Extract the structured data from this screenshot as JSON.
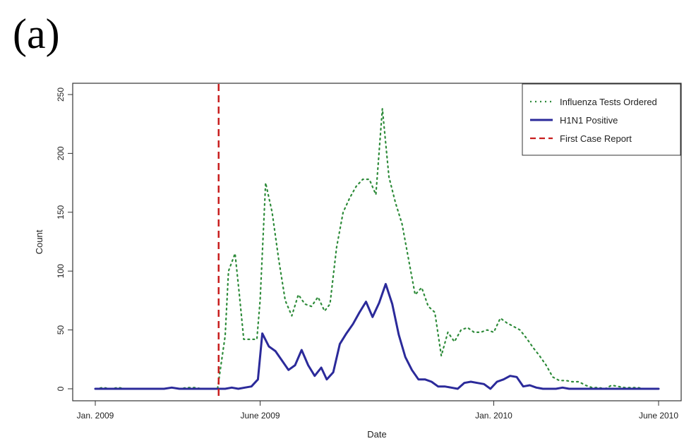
{
  "panel_label": "(a)",
  "chart_data": {
    "type": "line",
    "xlabel": "Date",
    "ylabel": "Count",
    "ylim": [
      0,
      250
    ],
    "xlim": [
      "2009-01-01",
      "2010-06-01"
    ],
    "y_ticks": [
      0,
      50,
      100,
      150,
      200,
      250
    ],
    "x_ticks": [
      {
        "date": "2009-01-01",
        "label": "Jan. 2009"
      },
      {
        "date": "2009-06-01",
        "label": "June 2009"
      },
      {
        "date": "2010-01-01",
        "label": "Jan. 2010"
      },
      {
        "date": "2010-06-01",
        "label": "June 2010"
      }
    ],
    "grid": false,
    "legend_position": "top-right",
    "series": [
      {
        "name": "Influenza Tests Ordered",
        "style": "dotted",
        "color": "#2e8b3a",
        "points": [
          [
            "2009-01-01",
            0
          ],
          [
            "2009-01-08",
            1
          ],
          [
            "2009-01-15",
            0
          ],
          [
            "2009-01-22",
            1
          ],
          [
            "2009-01-29",
            0
          ],
          [
            "2009-02-05",
            0
          ],
          [
            "2009-02-12",
            0
          ],
          [
            "2009-02-19",
            0
          ],
          [
            "2009-02-26",
            0
          ],
          [
            "2009-03-05",
            0
          ],
          [
            "2009-03-12",
            1
          ],
          [
            "2009-03-19",
            0
          ],
          [
            "2009-03-26",
            1
          ],
          [
            "2009-04-02",
            1
          ],
          [
            "2009-04-09",
            0
          ],
          [
            "2009-04-16",
            0
          ],
          [
            "2009-04-23",
            0
          ],
          [
            "2009-04-30",
            45
          ],
          [
            "2009-05-03",
            100
          ],
          [
            "2009-05-09",
            115
          ],
          [
            "2009-05-13",
            80
          ],
          [
            "2009-05-17",
            42
          ],
          [
            "2009-05-23",
            42
          ],
          [
            "2009-05-29",
            42
          ],
          [
            "2009-06-01",
            75
          ],
          [
            "2009-06-06",
            175
          ],
          [
            "2009-06-12",
            150
          ],
          [
            "2009-06-18",
            110
          ],
          [
            "2009-06-24",
            75
          ],
          [
            "2009-06-30",
            62
          ],
          [
            "2009-07-06",
            80
          ],
          [
            "2009-07-12",
            72
          ],
          [
            "2009-07-18",
            70
          ],
          [
            "2009-07-24",
            78
          ],
          [
            "2009-07-30",
            66
          ],
          [
            "2009-08-04",
            72
          ],
          [
            "2009-08-10",
            120
          ],
          [
            "2009-08-16",
            150
          ],
          [
            "2009-08-22",
            162
          ],
          [
            "2009-08-28",
            172
          ],
          [
            "2009-09-03",
            178
          ],
          [
            "2009-09-09",
            178
          ],
          [
            "2009-09-15",
            165
          ],
          [
            "2009-09-21",
            238
          ],
          [
            "2009-09-27",
            180
          ],
          [
            "2009-10-03",
            158
          ],
          [
            "2009-10-09",
            140
          ],
          [
            "2009-10-15",
            110
          ],
          [
            "2009-10-21",
            80
          ],
          [
            "2009-10-27",
            86
          ],
          [
            "2009-11-02",
            70
          ],
          [
            "2009-11-08",
            65
          ],
          [
            "2009-11-14",
            28
          ],
          [
            "2009-11-20",
            48
          ],
          [
            "2009-11-26",
            40
          ],
          [
            "2009-12-02",
            50
          ],
          [
            "2009-12-08",
            52
          ],
          [
            "2009-12-14",
            48
          ],
          [
            "2009-12-20",
            48
          ],
          [
            "2009-12-26",
            50
          ],
          [
            "2010-01-01",
            48
          ],
          [
            "2010-01-07",
            60
          ],
          [
            "2010-01-13",
            56
          ],
          [
            "2010-01-19",
            53
          ],
          [
            "2010-01-25",
            50
          ],
          [
            "2010-01-31",
            43
          ],
          [
            "2010-02-06",
            35
          ],
          [
            "2010-02-12",
            28
          ],
          [
            "2010-02-18",
            20
          ],
          [
            "2010-02-24",
            10
          ],
          [
            "2010-03-02",
            7
          ],
          [
            "2010-03-08",
            7
          ],
          [
            "2010-03-14",
            6
          ],
          [
            "2010-03-20",
            6
          ],
          [
            "2010-03-26",
            3
          ],
          [
            "2010-04-01",
            1
          ],
          [
            "2010-04-07",
            1
          ],
          [
            "2010-04-13",
            0
          ],
          [
            "2010-04-19",
            3
          ],
          [
            "2010-04-25",
            2
          ],
          [
            "2010-05-01",
            1
          ],
          [
            "2010-05-07",
            1
          ],
          [
            "2010-05-13",
            1
          ],
          [
            "2010-05-19",
            0
          ],
          [
            "2010-06-01",
            0
          ]
        ]
      },
      {
        "name": "H1N1 Positive",
        "style": "solid",
        "color": "#2b2a9a",
        "points": [
          [
            "2009-01-01",
            0
          ],
          [
            "2009-01-08",
            0
          ],
          [
            "2009-01-15",
            0
          ],
          [
            "2009-01-22",
            0
          ],
          [
            "2009-01-29",
            0
          ],
          [
            "2009-02-05",
            0
          ],
          [
            "2009-02-12",
            0
          ],
          [
            "2009-02-19",
            0
          ],
          [
            "2009-02-26",
            0
          ],
          [
            "2009-03-05",
            0
          ],
          [
            "2009-03-12",
            1
          ],
          [
            "2009-03-19",
            0
          ],
          [
            "2009-03-26",
            0
          ],
          [
            "2009-04-02",
            0
          ],
          [
            "2009-04-09",
            0
          ],
          [
            "2009-04-16",
            0
          ],
          [
            "2009-04-23",
            0
          ],
          [
            "2009-04-30",
            0
          ],
          [
            "2009-05-06",
            1
          ],
          [
            "2009-05-12",
            0
          ],
          [
            "2009-05-18",
            1
          ],
          [
            "2009-05-24",
            2
          ],
          [
            "2009-05-30",
            8
          ],
          [
            "2009-06-03",
            47
          ],
          [
            "2009-06-09",
            36
          ],
          [
            "2009-06-15",
            32
          ],
          [
            "2009-06-21",
            24
          ],
          [
            "2009-06-27",
            16
          ],
          [
            "2009-07-03",
            20
          ],
          [
            "2009-07-09",
            33
          ],
          [
            "2009-07-15",
            20
          ],
          [
            "2009-07-21",
            11
          ],
          [
            "2009-07-27",
            18
          ],
          [
            "2009-08-01",
            8
          ],
          [
            "2009-08-07",
            14
          ],
          [
            "2009-08-13",
            38
          ],
          [
            "2009-08-19",
            47
          ],
          [
            "2009-08-25",
            55
          ],
          [
            "2009-08-31",
            65
          ],
          [
            "2009-09-06",
            74
          ],
          [
            "2009-09-12",
            61
          ],
          [
            "2009-09-18",
            73
          ],
          [
            "2009-09-24",
            89
          ],
          [
            "2009-09-30",
            72
          ],
          [
            "2009-10-06",
            46
          ],
          [
            "2009-10-12",
            27
          ],
          [
            "2009-10-18",
            16
          ],
          [
            "2009-10-24",
            8
          ],
          [
            "2009-10-30",
            8
          ],
          [
            "2009-11-05",
            6
          ],
          [
            "2009-11-11",
            2
          ],
          [
            "2009-11-17",
            2
          ],
          [
            "2009-11-23",
            1
          ],
          [
            "2009-11-29",
            0
          ],
          [
            "2009-12-05",
            5
          ],
          [
            "2009-12-11",
            6
          ],
          [
            "2009-12-17",
            5
          ],
          [
            "2009-12-23",
            4
          ],
          [
            "2009-12-29",
            0
          ],
          [
            "2010-01-04",
            6
          ],
          [
            "2010-01-10",
            8
          ],
          [
            "2010-01-16",
            11
          ],
          [
            "2010-01-22",
            10
          ],
          [
            "2010-01-28",
            2
          ],
          [
            "2010-02-03",
            3
          ],
          [
            "2010-02-09",
            1
          ],
          [
            "2010-02-15",
            0
          ],
          [
            "2010-02-21",
            0
          ],
          [
            "2010-02-27",
            0
          ],
          [
            "2010-03-05",
            1
          ],
          [
            "2010-03-11",
            0
          ],
          [
            "2010-03-17",
            0
          ],
          [
            "2010-03-23",
            0
          ],
          [
            "2010-04-01",
            0
          ],
          [
            "2010-04-15",
            0
          ],
          [
            "2010-05-01",
            0
          ],
          [
            "2010-05-15",
            0
          ],
          [
            "2010-06-01",
            0
          ]
        ]
      }
    ],
    "reference_lines": [
      {
        "name": "First Case Report",
        "style": "dashed",
        "color": "#c81e1e",
        "date": "2009-04-24"
      }
    ]
  }
}
